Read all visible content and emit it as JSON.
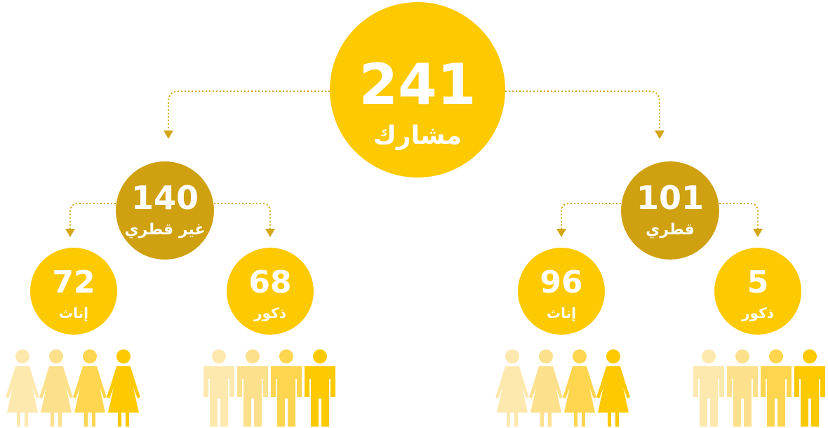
{
  "root": {
    "value": "241",
    "label": "مشارك"
  },
  "groups": [
    {
      "value": "140",
      "label": "غير قطري",
      "children": [
        {
          "value": "72",
          "label": "إناث"
        },
        {
          "value": "68",
          "label": "ذكور"
        }
      ]
    },
    {
      "value": "101",
      "label": "قطري",
      "children": [
        {
          "value": "96",
          "label": "إناث"
        },
        {
          "value": "5",
          "label": "ذكور"
        }
      ]
    }
  ]
}
